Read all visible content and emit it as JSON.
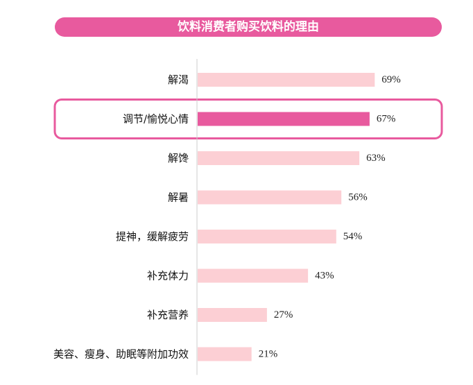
{
  "title": "饮料消费者购买饮料的理由",
  "colors": {
    "banner": "#e85a9e",
    "bar": "#fccfd4",
    "highlight_bar": "#e85a9e",
    "highlight_border": "#e85a9e",
    "axis": "#cccccc"
  },
  "chart_data": {
    "type": "bar",
    "orientation": "horizontal",
    "title": "饮料消费者购买饮料的理由",
    "categories": [
      "解渴",
      "调节/愉悦心情",
      "解馋",
      "解暑",
      "提神，缓解疲劳",
      "补充体力",
      "补充营养",
      "美容、瘦身、助眠等附加功效"
    ],
    "values": [
      69,
      67,
      63,
      56,
      54,
      43,
      27,
      21
    ],
    "value_labels": [
      "69%",
      "67%",
      "63%",
      "56%",
      "54%",
      "43%",
      "27%",
      "21%"
    ],
    "highlighted_category": "调节/愉悦心情",
    "xlim": [
      0,
      100
    ],
    "grid": false
  }
}
